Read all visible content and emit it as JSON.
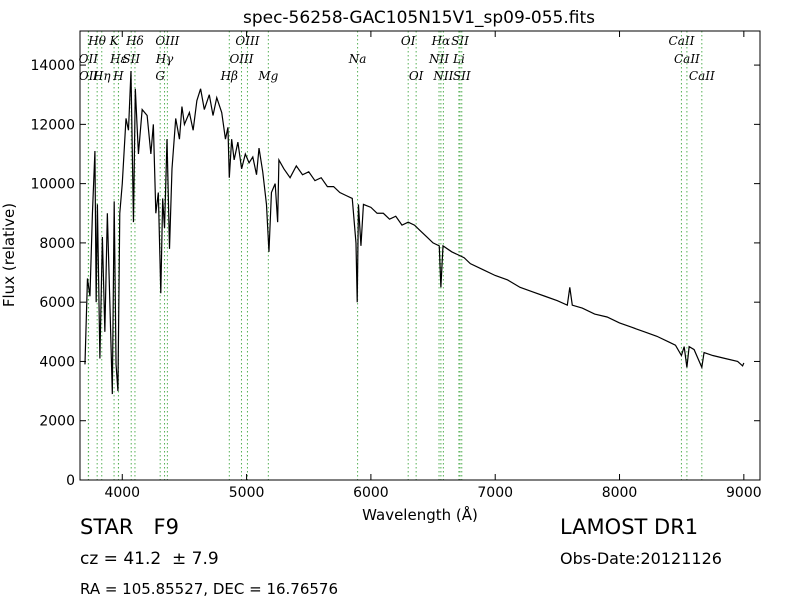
{
  "chart_data": {
    "type": "line",
    "title": "spec-56258-GAC105N15V1_sp09-055.fits",
    "xlabel": "Wavelength (Å)",
    "ylabel": "Flux (relative)",
    "xlim": [
      3660,
      9130
    ],
    "ylim": [
      0,
      15150
    ],
    "xticks": [
      4000,
      5000,
      6000,
      7000,
      8000,
      9000
    ],
    "yticks": [
      0,
      2000,
      4000,
      6000,
      8000,
      10000,
      12000,
      14000
    ],
    "color": "#000000",
    "line_color": "#55b055",
    "x": [
      3700,
      3720,
      3740,
      3760,
      3780,
      3790,
      3800,
      3820,
      3840,
      3860,
      3880,
      3900,
      3920,
      3935,
      3950,
      3965,
      3980,
      4000,
      4030,
      4050,
      4070,
      4090,
      4105,
      4130,
      4160,
      4200,
      4230,
      4250,
      4270,
      4290,
      4310,
      4325,
      4340,
      4360,
      4380,
      4400,
      4430,
      4460,
      4480,
      4500,
      4540,
      4570,
      4600,
      4630,
      4660,
      4700,
      4730,
      4760,
      4800,
      4830,
      4850,
      4861,
      4880,
      4900,
      4930,
      4960,
      4990,
      5020,
      5050,
      5080,
      5100,
      5130,
      5160,
      5170,
      5180,
      5200,
      5230,
      5250,
      5260,
      5300,
      5350,
      5400,
      5450,
      5500,
      5550,
      5600,
      5650,
      5700,
      5750,
      5800,
      5850,
      5880,
      5890,
      5900,
      5920,
      5940,
      6000,
      6050,
      6100,
      6150,
      6200,
      6250,
      6300,
      6350,
      6400,
      6450,
      6500,
      6550,
      6563,
      6580,
      6650,
      6700,
      6750,
      6800,
      6900,
      7000,
      7100,
      7200,
      7300,
      7400,
      7500,
      7580,
      7600,
      7620,
      7700,
      7800,
      7900,
      8000,
      8100,
      8200,
      8300,
      8400,
      8450,
      8498,
      8520,
      8542,
      8560,
      8600,
      8662,
      8680,
      8750,
      8850,
      8950,
      8990,
      9000
    ],
    "values": [
      3900,
      6800,
      6200,
      9000,
      11100,
      6000,
      9300,
      4100,
      8200,
      5000,
      9000,
      6000,
      2900,
      9400,
      3900,
      3000,
      9000,
      10000,
      12200,
      11800,
      13800,
      8700,
      13200,
      11000,
      12500,
      12300,
      11000,
      12000,
      9000,
      9700,
      6300,
      9500,
      8500,
      11500,
      7800,
      10500,
      12200,
      11500,
      12600,
      12000,
      12400,
      11800,
      12800,
      13200,
      12500,
      13000,
      12300,
      12900,
      12400,
      11500,
      11900,
      10200,
      11500,
      10800,
      11400,
      10500,
      11000,
      10700,
      10900,
      10300,
      11200,
      10400,
      9300,
      8500,
      7700,
      9700,
      10000,
      8700,
      10800,
      10500,
      10200,
      10600,
      10300,
      10400,
      10100,
      10200,
      9900,
      9900,
      9700,
      9600,
      9500,
      8000,
      6000,
      9300,
      7900,
      9300,
      9200,
      9000,
      9000,
      8800,
      8900,
      8600,
      8700,
      8600,
      8400,
      8200,
      8000,
      7900,
      6500,
      7900,
      7700,
      7600,
      7500,
      7300,
      7100,
      6900,
      6750,
      6500,
      6350,
      6200,
      6050,
      5900,
      6500,
      5900,
      5800,
      5600,
      5500,
      5300,
      5150,
      5000,
      4850,
      4650,
      4550,
      4200,
      4500,
      3800,
      4500,
      4400,
      3800,
      4300,
      4200,
      4100,
      4000,
      3850,
      3950
    ],
    "lines": [
      {
        "label": "Hθ",
        "wavelength": 3798
      },
      {
        "label": "K",
        "wavelength": 3934
      },
      {
        "label": "Hδ",
        "wavelength": 4102
      },
      {
        "label": "OIII",
        "wavelength": 4363
      },
      {
        "label": "OIII",
        "wavelength": 5007
      },
      {
        "label": "OI",
        "wavelength": 6300
      },
      {
        "label": "Hα",
        "wavelength": 6563
      },
      {
        "label": "SII",
        "wavelength": 6717
      },
      {
        "label": "CaII",
        "wavelength": 8498
      },
      {
        "label": "OII",
        "wavelength": 3727
      },
      {
        "label": "Hε",
        "wavelength": 3970
      },
      {
        "label": "SII",
        "wavelength": 4072
      },
      {
        "label": "Hγ",
        "wavelength": 4340
      },
      {
        "label": "OIII",
        "wavelength": 4959
      },
      {
        "label": "Na",
        "wavelength": 5893
      },
      {
        "label": "NII",
        "wavelength": 6548
      },
      {
        "label": "Li",
        "wavelength": 6708
      },
      {
        "label": "CaII",
        "wavelength": 8542
      },
      {
        "label": "OII",
        "wavelength": 3729
      },
      {
        "label": "Hη",
        "wavelength": 3835
      },
      {
        "label": "H",
        "wavelength": 3969
      },
      {
        "label": "G",
        "wavelength": 4305
      },
      {
        "label": "Hβ",
        "wavelength": 4861
      },
      {
        "label": "Mg",
        "wavelength": 5175
      },
      {
        "label": "OI",
        "wavelength": 6364
      },
      {
        "label": "NII",
        "wavelength": 6583
      },
      {
        "label": "SII",
        "wavelength": 6731
      },
      {
        "label": "CaII",
        "wavelength": 8662
      }
    ],
    "annotations": [
      "STAR   F9",
      "cz = 41.2  ± 7.9",
      "RA = 105.85527, DEC = 16.76576",
      "LAMOST DR1",
      "Obs-Date:20121126"
    ]
  }
}
